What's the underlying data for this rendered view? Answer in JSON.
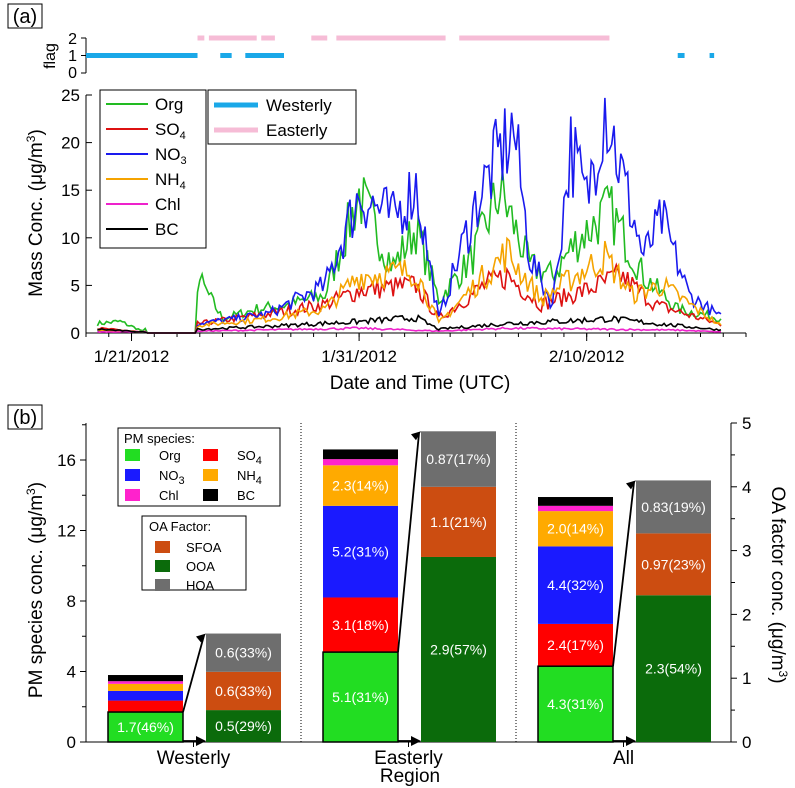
{
  "panel_a": {
    "label": "(a)",
    "flag_axis_label": "flag",
    "flag_ticks": [
      "0",
      "1",
      "2"
    ],
    "y_label": "Mass Conc. (μg/m³)",
    "y_label_main": "Mass Conc. (μg/m",
    "y_label_sup": "3",
    "y_label_end": ")",
    "y_ticks": [
      "0",
      "5",
      "10",
      "15",
      "20",
      "25"
    ],
    "x_label": "Date and Time (UTC)",
    "x_ticks": [
      "1/21/2012",
      "1/31/2012",
      "2/10/2012"
    ],
    "legend_species": [
      {
        "label": "Org",
        "sub": "",
        "color": "#22bb22"
      },
      {
        "label": "SO",
        "sub": "4",
        "color": "#dd1111"
      },
      {
        "label": "NO",
        "sub": "3",
        "color": "#1a1aee"
      },
      {
        "label": "NH",
        "sub": "4",
        "color": "#f5a300"
      },
      {
        "label": "Chl",
        "sub": "",
        "color": "#ee22cc"
      },
      {
        "label": "BC",
        "sub": "",
        "color": "#000000"
      }
    ],
    "legend_flags": [
      {
        "label": "Westerly",
        "color": "#1aa8e8"
      },
      {
        "label": "Easterly",
        "color": "#f6bcd6"
      }
    ]
  },
  "panel_b": {
    "label": "(b)",
    "y_left_label": "PM species conc. (μg/m³)",
    "y_left_main": "PM species conc. (μg/m",
    "y_left_sup": "3",
    "y_left_end": ")",
    "y_right_label": "OA factor conc. (μg/m³)",
    "y_right_main": "OA factor conc. (μg/m",
    "y_right_sup": "3",
    "y_right_end": ")",
    "y_left_ticks": [
      "0",
      "4",
      "8",
      "12",
      "16"
    ],
    "y_right_ticks": [
      "0",
      "1",
      "2",
      "3",
      "4",
      "5"
    ],
    "x_label": "Region",
    "groups": [
      "Westerly",
      "Easterly",
      "All"
    ],
    "legend_pm_title": "PM species:",
    "legend_pm": [
      {
        "label": "Org",
        "sub": "",
        "color": "#22dd22"
      },
      {
        "label": "SO",
        "sub": "4",
        "color": "#ff0000"
      },
      {
        "label": "NO",
        "sub": "3",
        "color": "#1a1aff"
      },
      {
        "label": "NH",
        "sub": "4",
        "color": "#ffaa00"
      },
      {
        "label": "Chl",
        "sub": "",
        "color": "#ff22cc"
      },
      {
        "label": "BC",
        "sub": "",
        "color": "#000000"
      }
    ],
    "legend_oa_title": "OA Factor:",
    "legend_oa": [
      {
        "label": "SFOA",
        "color": "#cc4d11"
      },
      {
        "label": "OOA",
        "color": "#0b6b0b"
      },
      {
        "label": "HOA",
        "color": "#6e6e6e"
      }
    ]
  },
  "chart_data": [
    {
      "type": "line",
      "panel": "a",
      "xlabel": "Date and Time (UTC)",
      "ylabel": "Mass Conc. (μg/m³)",
      "ylim": [
        0,
        25
      ],
      "xlim": [
        "2012-01-19",
        "2012-02-17"
      ],
      "x_ticks": [
        "1/21/2012",
        "1/31/2012",
        "2/10/2012"
      ],
      "flag_ylim": [
        0,
        2
      ],
      "flag_series": [
        {
          "name": "Westerly",
          "value": 1,
          "periods": [
            [
              "2012-01-19",
              "2012-01-23.9"
            ],
            [
              "2012-01-24.9",
              "2012-01-25.4"
            ],
            [
              "2012-01-26.0",
              "2012-01-27.7"
            ],
            [
              "2012-02-14.0",
              "2012-02-14.3"
            ],
            [
              "2012-02-15.4",
              "2012-02-15.6"
            ]
          ]
        },
        {
          "name": "Easterly",
          "value": 2,
          "periods": [
            [
              "2012-01-23.9",
              "2012-01-24.2"
            ],
            [
              "2012-01-24.4",
              "2012-01-26.5"
            ],
            [
              "2012-01-26.7",
              "2012-01-27.3"
            ],
            [
              "2012-01-28.9",
              "2012-01-29.6"
            ],
            [
              "2012-01-30.0",
              "2012-02-03.8"
            ],
            [
              "2012-02-04.4",
              "2012-02-11.0"
            ]
          ]
        }
      ],
      "series": [
        {
          "name": "Org",
          "color": "#22bb22",
          "points": [
            [
              "2012-01-19.5",
              1.0
            ],
            [
              "2012-01-20.5",
              1.2
            ],
            [
              "2012-01-21.5",
              0.2
            ],
            [
              "2012-01-24.0",
              5.5
            ],
            [
              "2012-01-25.0",
              1.5
            ],
            [
              "2012-01-26.5",
              2.5
            ],
            [
              "2012-01-28.0",
              3.0
            ],
            [
              "2012-01-29.5",
              4.0
            ],
            [
              "2012-01-31.0",
              14.5
            ],
            [
              "2012-02-01.5",
              7.0
            ],
            [
              "2012-02-02.5",
              11.0
            ],
            [
              "2012-02-03.5",
              3.5
            ],
            [
              "2012-02-05.0",
              8.0
            ],
            [
              "2012-02-06.2",
              15.0
            ],
            [
              "2012-02-07.5",
              7.0
            ],
            [
              "2012-02-08.5",
              6.0
            ],
            [
              "2012-02-09.5",
              9.5
            ],
            [
              "2012-02-11.0",
              13.0
            ],
            [
              "2012-02-12.5",
              6.0
            ],
            [
              "2012-02-14.0",
              2.5
            ],
            [
              "2012-02-16.0",
              1.5
            ]
          ]
        },
        {
          "name": "SO4",
          "color": "#dd1111",
          "points": [
            [
              "2012-01-19.5",
              0.5
            ],
            [
              "2012-01-21.5",
              0.1
            ],
            [
              "2012-01-24.0",
              1.0
            ],
            [
              "2012-01-27.0",
              2.0
            ],
            [
              "2012-01-29.5",
              3.0
            ],
            [
              "2012-01-31.0",
              4.5
            ],
            [
              "2012-02-02.5",
              5.0
            ],
            [
              "2012-02-03.5",
              1.5
            ],
            [
              "2012-02-05.5",
              5.0
            ],
            [
              "2012-02-06.5",
              6.0
            ],
            [
              "2012-02-08.0",
              3.0
            ],
            [
              "2012-02-10.0",
              4.5
            ],
            [
              "2012-02-11.5",
              6.0
            ],
            [
              "2012-02-13.0",
              3.0
            ],
            [
              "2012-02-16.0",
              0.8
            ]
          ]
        },
        {
          "name": "NO3",
          "color": "#1a1aee",
          "points": [
            [
              "2012-01-19.5",
              0.3
            ],
            [
              "2012-01-21.5",
              0.1
            ],
            [
              "2012-01-24.0",
              1.0
            ],
            [
              "2012-01-27.0",
              2.0
            ],
            [
              "2012-01-29.5",
              5.0
            ],
            [
              "2012-01-31.0",
              14.5
            ],
            [
              "2012-02-01.5",
              12.0
            ],
            [
              "2012-02-02.5",
              15.5
            ],
            [
              "2012-02-03.5",
              1.5
            ],
            [
              "2012-02-05.2",
              14.0
            ],
            [
              "2012-02-06.0",
              18.0
            ],
            [
              "2012-02-06.8",
              21.5
            ],
            [
              "2012-02-07.5",
              8.0
            ],
            [
              "2012-02-08.5",
              3.0
            ],
            [
              "2012-02-09.3",
              19.5
            ],
            [
              "2012-02-10.0",
              14.0
            ],
            [
              "2012-02-10.8",
              24.5
            ],
            [
              "2012-02-11.5",
              17.0
            ],
            [
              "2012-02-12.5",
              8.0
            ],
            [
              "2012-02-13.3",
              12.0
            ],
            [
              "2012-02-14.5",
              4.0
            ],
            [
              "2012-02-16.0",
              1.5
            ]
          ]
        },
        {
          "name": "NH4",
          "color": "#f5a300",
          "points": [
            [
              "2012-01-19.5",
              0.3
            ],
            [
              "2012-01-21.5",
              0.1
            ],
            [
              "2012-01-24.0",
              0.8
            ],
            [
              "2012-01-27.0",
              1.5
            ],
            [
              "2012-01-29.5",
              2.5
            ],
            [
              "2012-01-31.0",
              6.0
            ],
            [
              "2012-02-02.5",
              6.5
            ],
            [
              "2012-02-03.5",
              1.0
            ],
            [
              "2012-02-05.5",
              6.0
            ],
            [
              "2012-02-06.5",
              8.5
            ],
            [
              "2012-02-08.0",
              3.5
            ],
            [
              "2012-02-09.5",
              6.0
            ],
            [
              "2012-02-10.8",
              8.0
            ],
            [
              "2012-02-12.0",
              4.0
            ],
            [
              "2012-02-13.3",
              5.0
            ],
            [
              "2012-02-16.0",
              0.6
            ]
          ]
        },
        {
          "name": "Chl",
          "color": "#ee22cc",
          "points": [
            [
              "2012-01-19.5",
              0.1
            ],
            [
              "2012-01-24.0",
              0.2
            ],
            [
              "2012-01-31.0",
              0.5
            ],
            [
              "2012-02-03.5",
              0.2
            ],
            [
              "2012-02-06.5",
              0.5
            ],
            [
              "2012-02-10.5",
              0.4
            ],
            [
              "2012-02-14.0",
              0.3
            ],
            [
              "2012-02-16.0",
              0.1
            ]
          ]
        },
        {
          "name": "BC",
          "color": "#000000",
          "points": [
            [
              "2012-01-19.5",
              0.4
            ],
            [
              "2012-01-21.5",
              0.1
            ],
            [
              "2012-01-24.0",
              0.4
            ],
            [
              "2012-01-27.0",
              0.7
            ],
            [
              "2012-01-31.0",
              1.2
            ],
            [
              "2012-02-02.5",
              1.6
            ],
            [
              "2012-02-03.5",
              0.4
            ],
            [
              "2012-02-06.5",
              1.0
            ],
            [
              "2012-02-09.5",
              1.3
            ],
            [
              "2012-02-11.0",
              1.5
            ],
            [
              "2012-02-13.0",
              1.0
            ],
            [
              "2012-02-16.0",
              0.3
            ]
          ]
        }
      ]
    },
    {
      "type": "bar",
      "panel": "b",
      "stacked": true,
      "xlabel": "Region",
      "ylabel": "PM species conc. (μg/m³)",
      "y2label": "OA factor conc. (μg/m³)",
      "ylim": [
        0,
        18.1
      ],
      "y2lim": [
        0,
        5
      ],
      "categories": [
        "Westerly",
        "Easterly",
        "All"
      ],
      "pm_species": [
        {
          "name": "Org",
          "color": "#22dd22",
          "values": [
            1.7,
            5.1,
            4.3
          ],
          "labels": [
            "1.7(46%)",
            "5.1(31%)",
            "4.3(31%)"
          ]
        },
        {
          "name": "SO4",
          "color": "#ff0000",
          "values": [
            0.65,
            3.1,
            2.4
          ],
          "labels": [
            "",
            "3.1(18%)",
            "2.4(17%)"
          ]
        },
        {
          "name": "NO3",
          "color": "#1a1aff",
          "values": [
            0.55,
            5.2,
            4.4
          ],
          "labels": [
            "",
            "5.2(31%)",
            "4.4(32%)"
          ]
        },
        {
          "name": "NH4",
          "color": "#ffaa00",
          "values": [
            0.4,
            2.3,
            2.0
          ],
          "labels": [
            "",
            "2.3(14%)",
            "2.0(14%)"
          ]
        },
        {
          "name": "Chl",
          "color": "#ff22cc",
          "values": [
            0.15,
            0.35,
            0.3
          ],
          "labels": [
            "",
            "",
            ""
          ]
        },
        {
          "name": "BC",
          "color": "#000000",
          "values": [
            0.35,
            0.55,
            0.5
          ],
          "labels": [
            "",
            "",
            ""
          ]
        }
      ],
      "oa_factors": [
        {
          "name": "OOA",
          "color": "#0b6b0b",
          "values": [
            0.5,
            2.9,
            2.3
          ],
          "labels": [
            "0.5(29%)",
            "2.9(57%)",
            "2.3(54%)"
          ]
        },
        {
          "name": "SFOA",
          "color": "#cc4d11",
          "values": [
            0.6,
            1.1,
            0.97
          ],
          "labels": [
            "0.6(33%)",
            "1.1(21%)",
            "0.97(23%)"
          ]
        },
        {
          "name": "HOA",
          "color": "#6e6e6e",
          "values": [
            0.6,
            0.87,
            0.83
          ],
          "labels": [
            "0.6(33%)",
            "0.87(17%)",
            "0.83(19%)"
          ]
        }
      ]
    }
  ]
}
